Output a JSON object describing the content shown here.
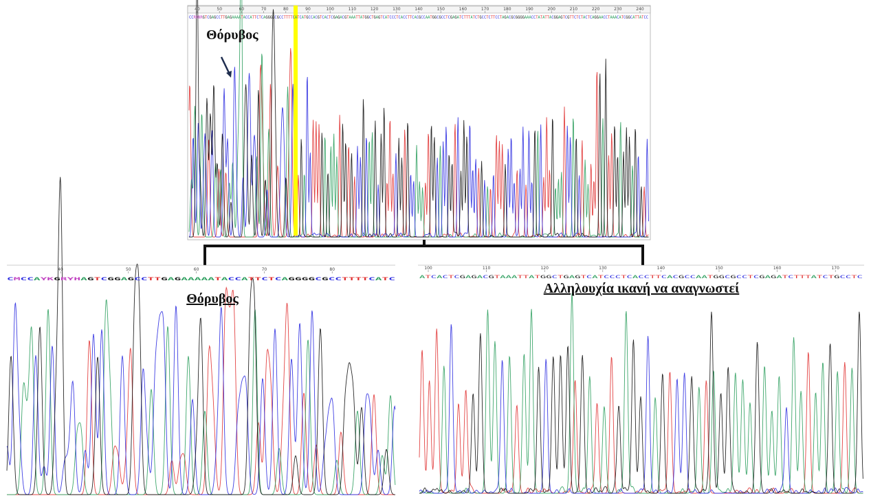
{
  "top_panel": {
    "ruler": [
      "40",
      "50",
      "60",
      "70",
      "80",
      "90",
      "100",
      "110",
      "120",
      "130",
      "140",
      "150",
      "160",
      "170",
      "180",
      "190",
      "200",
      "210",
      "220",
      "230",
      "240"
    ],
    "sequence": "CCRKNRGTCGAGCCTTGAGAAAATACCATTCTCAGGGGCGCCTTTTCATCATGCCACGTCACTCGAGACGTAAATTATGGCTGAGTCATCCCTCACCTTCACGCCAATGGCGCCTCGAGATCTTTATCTGCCTCTTCCTAGACGCGGGGAAACCTATATTACGGAGTCGTTCTCTACTCAGGAACCTAAACATCGGCATTATCC",
    "annotation": "Θόρυβος"
  },
  "left_panel": {
    "ruler": [
      "40",
      "50",
      "60",
      "70",
      "80"
    ],
    "sequence": "CMCCAYKGRYHAGTCGGAGCCTTGAGAAAAATACCATTCTCAGGGGCGCCTTTTCATC",
    "title": "Θόρυβος"
  },
  "right_panel": {
    "ruler": [
      "100",
      "110",
      "120",
      "130",
      "140",
      "150",
      "160",
      "170"
    ],
    "sequence": "ATCACTCGAGACGTAAATTATGGCTGAGTCATCCCTCACCTTCACGCCAATGGCGCCTCGAGATCTTTATCTGCCTC",
    "title": "Αλληλουχία ικανή να αναγνωστεί"
  }
}
